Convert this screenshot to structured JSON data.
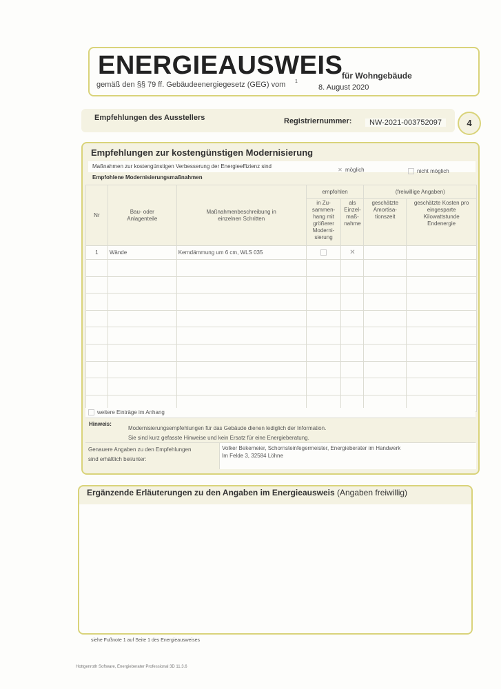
{
  "header": {
    "title": "ENERGIEAUSWEIS",
    "title_suffix": "für Wohngebäude",
    "subtitle": "gemäß den §§ 79 ff. Gebäudeenergiegesetz (GEG) vom",
    "footnote_mark": "1",
    "date": "8. August 2020"
  },
  "band": {
    "label": "Empfehlungen des Ausstellers",
    "reg_label": "Registriernummer:",
    "reg_value": "NW-2021-003752097",
    "page_number": "4"
  },
  "modernisation": {
    "title": "Empfehlungen zur kostengünstigen Modernisierung",
    "measures_label": "Maßnahmen zur kostengünstigen Verbesserung der Energieeffizienz sind",
    "option_possible": "möglich",
    "option_possible_checked": true,
    "option_not_possible": "nicht möglich",
    "option_not_possible_checked": false,
    "recommended_label": "Empfohlene Modernisierungsmaßnahmen",
    "columns": {
      "nr": "Nr",
      "part": "Bau- oder Anlagenteile",
      "description": "Maßnahmenbeschreibung in einzelnen Schritten",
      "recommended": "empfohlen",
      "combined": "in Zu- sammen- hang mit größerer Moderni- sierung",
      "single": "als Einzel- maß- nahme",
      "optional": "(freiwillige Angaben)",
      "payback": "geschätzte Amortisa- tionszeit",
      "cost": "geschätzte Kosten pro eingesparte Kilowattstunde Endenergie"
    },
    "rows": [
      {
        "nr": "1",
        "part": "Wände",
        "description": "Kerndämmung um 6 cm, WLS 035",
        "combined": false,
        "single": true,
        "payback": "",
        "cost": ""
      }
    ],
    "more_entries_label": "weitere Einträge im Anhang",
    "more_entries_checked": false,
    "note_label": "Hinweis:",
    "note_line1": "Modernisierungsempfehlungen für das Gebäude dienen lediglich der Information.",
    "note_line2": "Sie sind kurz gefasste Hinweise und kein Ersatz für eine Energieberatung.",
    "contact_label_1": "Genauere Angaben zu den Empfehlungen",
    "contact_label_2": "sind erhältlich bei/unter:",
    "contact_line1": "Volker Bekemeier, Schornsteinfegermeister, Energieberater im Handwerk",
    "contact_line2": "Im Felde 3, 32584 Löhne"
  },
  "explanations": {
    "title_bold": "Ergänzende Erläuterungen zu den Angaben im Energieausweis",
    "title_normal": "(Angaben freiwillig)"
  },
  "footnote": "siehe Fußnote 1 auf Seite 1 des Energieausweises",
  "software": "Hottgenroth Software, Energieberater Professional 3D 11.3.6",
  "colors": {
    "border": "#d9d37a",
    "band": "#f4f2e2"
  }
}
